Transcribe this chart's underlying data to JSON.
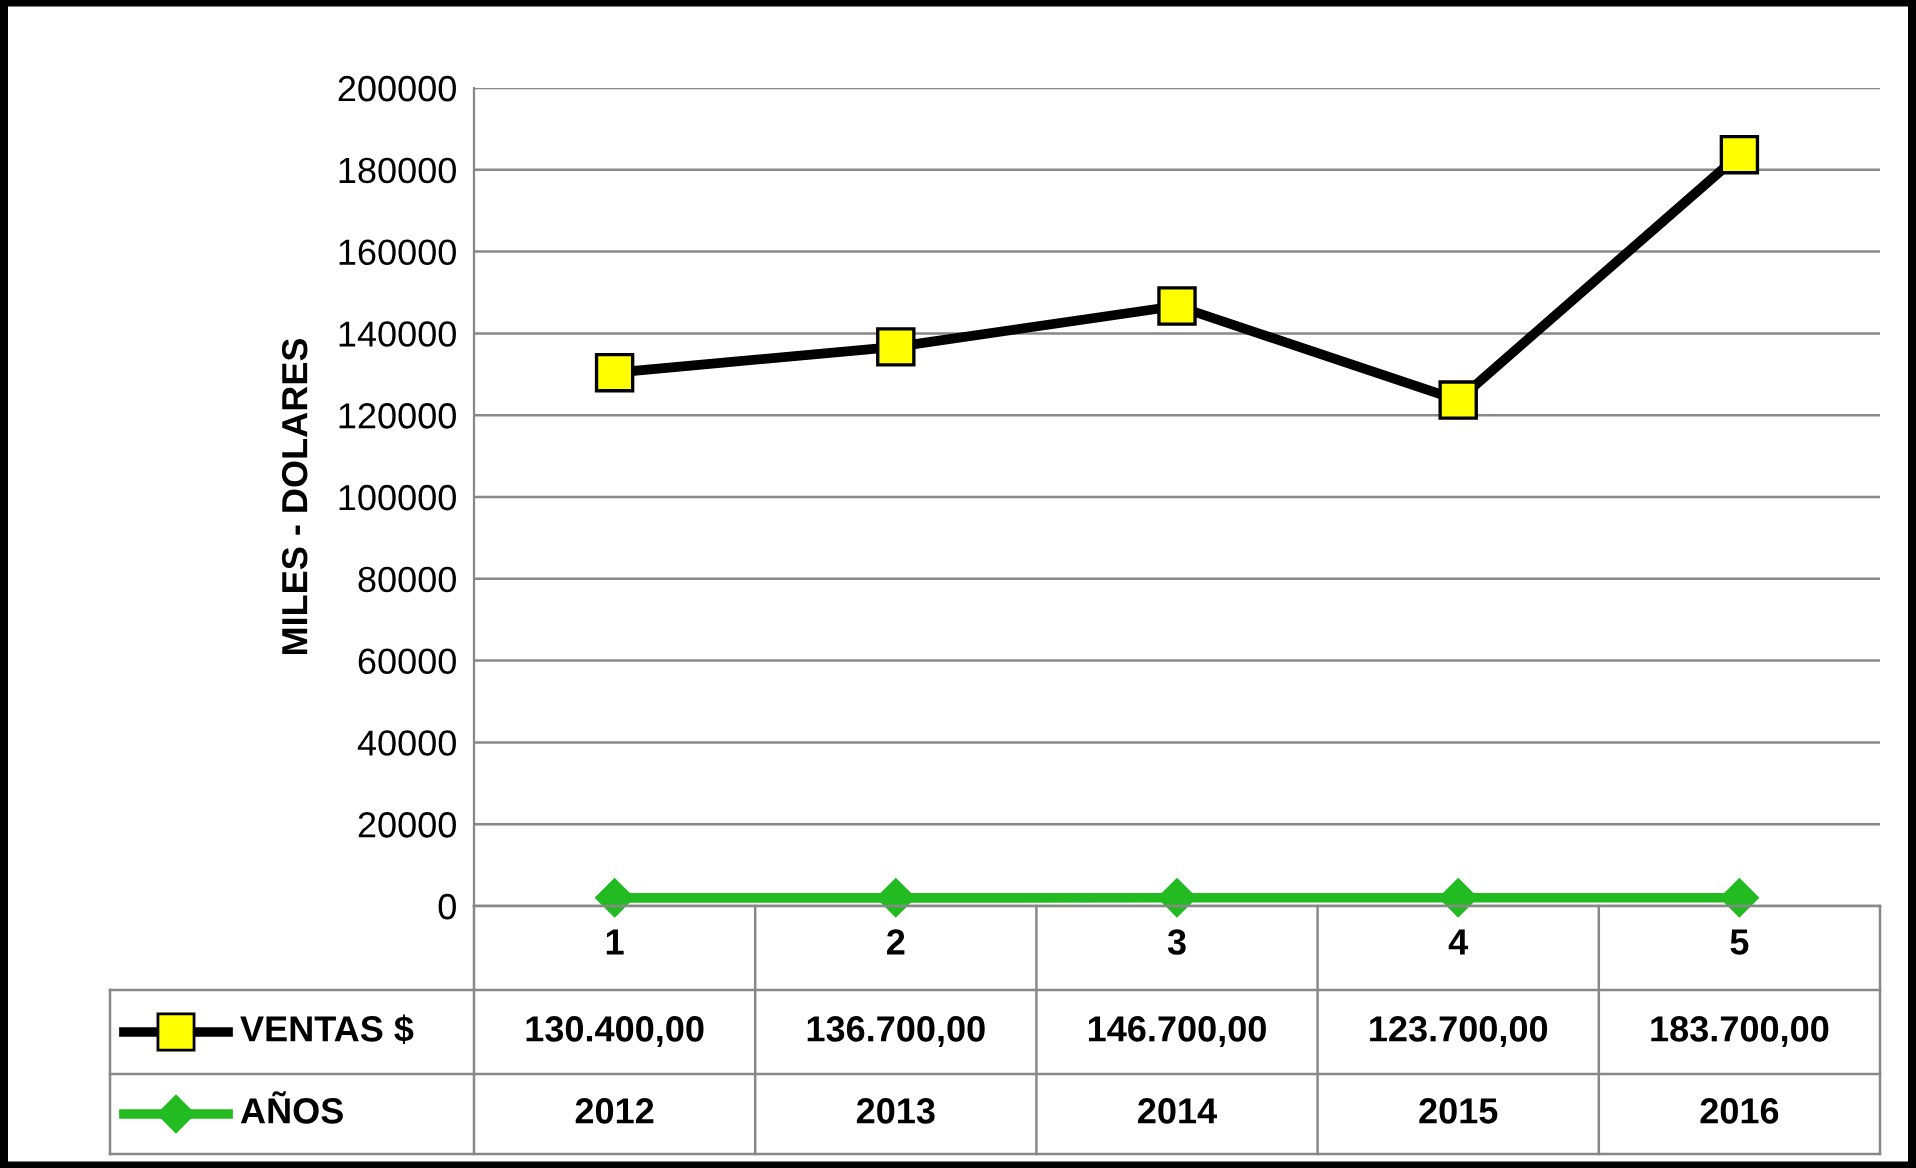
{
  "chart_data": {
    "type": "line",
    "ylabel": "MILES - DOLARES",
    "categories": [
      "1",
      "2",
      "3",
      "4",
      "5"
    ],
    "series": [
      {
        "name": "VENTAS $",
        "color": "#000000",
        "marker": "square",
        "colors": [
          "#ffff00",
          "#ffff00",
          "#ffff00",
          "#ffff00",
          "#ffff00"
        ],
        "values": [
          130400,
          136700,
          146700,
          123700,
          183700
        ],
        "value_labels": [
          "130.400,00",
          "136.700,00",
          "146.700,00",
          "123.700,00",
          "183.700,00"
        ]
      },
      {
        "name": "AÑOS",
        "color": "#22bb22",
        "marker": "diamond",
        "colors": [
          "#22bb22",
          "#22bb22",
          "#22bb22",
          "#22bb22",
          "#22bb22"
        ],
        "values": [
          2012,
          2013,
          2014,
          2015,
          2016
        ],
        "value_labels": [
          "2012",
          "2013",
          "2014",
          "2015",
          "2016"
        ]
      }
    ],
    "ylim": [
      0,
      200000
    ],
    "yticks": [
      0,
      20000,
      40000,
      60000,
      80000,
      100000,
      120000,
      140000,
      160000,
      180000,
      200000
    ],
    "grid": "y",
    "legend": "bottom",
    "line_style": "solid"
  }
}
